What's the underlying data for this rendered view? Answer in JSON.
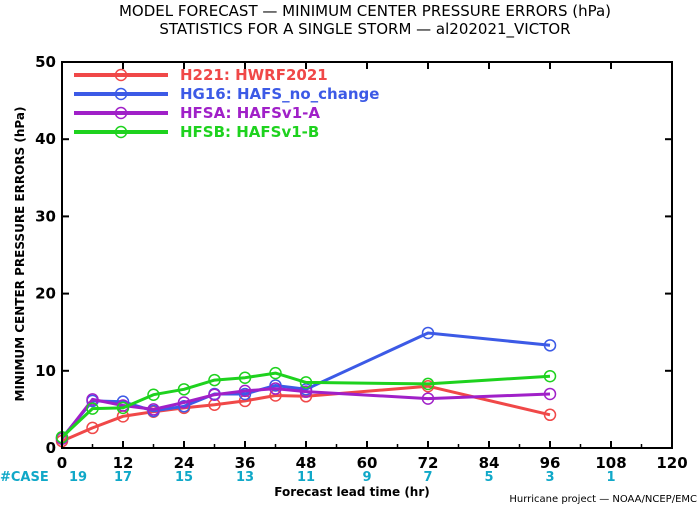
{
  "chart_data": {
    "type": "line",
    "title": "MODEL FORECAST — MINIMUM CENTER PRESSURE ERRORS (hPa)",
    "subtitle": "STATISTICS FOR A SINGLE STORM — al202021_VICTOR",
    "xlabel": "Forecast lead time (hr)",
    "ylabel": "MINIMUM CENTER PRESSURE ERRORS (hPa)",
    "xlim": [
      0,
      120
    ],
    "ylim": [
      0,
      50
    ],
    "xticks": [
      "0",
      "12",
      "24",
      "36",
      "48",
      "60",
      "72",
      "84",
      "96",
      "108",
      "120"
    ],
    "yticks": [
      "0",
      "10",
      "20",
      "30",
      "40",
      "50"
    ],
    "legend_position": "top-left",
    "series": [
      {
        "name": "H221: HWRF2021",
        "color": "#f04848",
        "x": [
          0,
          6,
          12,
          18,
          24,
          30,
          36,
          42,
          48,
          72,
          96
        ],
        "y": [
          0.9,
          2.6,
          4.1,
          4.7,
          5.2,
          5.6,
          6.1,
          6.8,
          6.7,
          8.0,
          4.3
        ]
      },
      {
        "name": "HG16: HAFS_no_change",
        "color": "#3c5ae6",
        "x": [
          0,
          6,
          12,
          18,
          24,
          30,
          36,
          42,
          48,
          72,
          96
        ],
        "y": [
          1.3,
          6.1,
          6.0,
          4.8,
          5.4,
          7.0,
          7.0,
          8.1,
          7.6,
          14.9,
          13.3
        ]
      },
      {
        "name": "HFSA: HAFSv1-A",
        "color": "#a020c8",
        "x": [
          0,
          6,
          12,
          18,
          24,
          30,
          36,
          42,
          48,
          72,
          96
        ],
        "y": [
          1.2,
          6.3,
          5.5,
          5.0,
          5.9,
          6.9,
          7.4,
          7.7,
          7.3,
          6.4,
          7.0
        ]
      },
      {
        "name": "HFSB: HAFSv1-B",
        "color": "#1ed21e",
        "x": [
          0,
          6,
          12,
          18,
          24,
          30,
          36,
          42,
          48,
          72,
          96
        ],
        "y": [
          1.4,
          5.1,
          5.2,
          6.9,
          7.6,
          8.8,
          9.1,
          9.7,
          8.5,
          8.3,
          9.3
        ]
      }
    ],
    "case_label": "#CASE",
    "case_counts": [
      {
        "x": 0,
        "n": "19"
      },
      {
        "x": 12,
        "n": "17"
      },
      {
        "x": 24,
        "n": "15"
      },
      {
        "x": 36,
        "n": "13"
      },
      {
        "x": 48,
        "n": "11"
      },
      {
        "x": 60,
        "n": "9"
      },
      {
        "x": 72,
        "n": "7"
      },
      {
        "x": 84,
        "n": "5"
      },
      {
        "x": 96,
        "n": "3"
      },
      {
        "x": 108,
        "n": "1"
      }
    ],
    "credit": "Hurricane project — NOAA/NCEP/EMC"
  }
}
